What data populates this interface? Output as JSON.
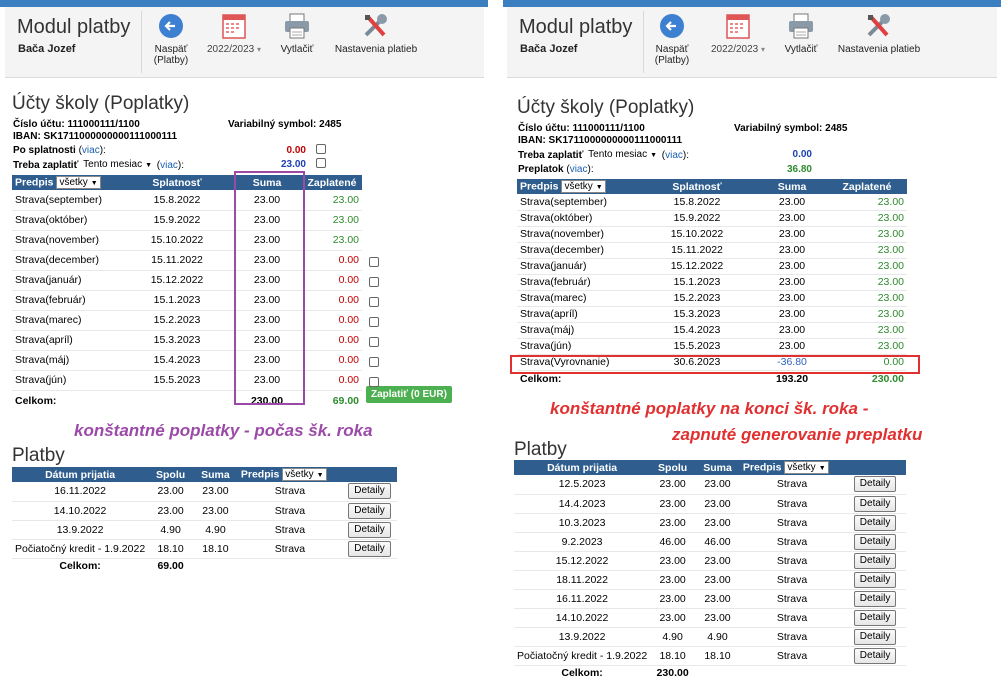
{
  "header": {
    "module_title": "Modul platby",
    "user_name": "Bača Jozef",
    "back_label_1": "Naspäť",
    "back_label_2": "(Platby)",
    "year_label": "2022/2023",
    "print_label": "Vytlačiť",
    "settings_label": "Nastavenia platieb",
    "caret": "▾"
  },
  "account": {
    "section_title": "Účty školy (Poplatky)",
    "number_label": "Číslo účtu: 111000111/1100",
    "iban_label": "IBAN: SK1711000000000111000111",
    "variable_symbol": "Variabilný symbol: 2485",
    "overdue_label": "Po splatnosti",
    "more_link": "viac",
    "to_pay_label": "Treba zaplatiť",
    "to_pay_select": "Tento mesiac",
    "overpay_label": "Preplatok",
    "colon": ":"
  },
  "fees_header": {
    "predpis": "Predpis",
    "filter": "všetky",
    "splatnost": "Splatnosť",
    "suma": "Suma",
    "zaplatene": "Zaplatené",
    "total_label": "Celkom:"
  },
  "left": {
    "overdue_value": "0.00",
    "to_pay_value": "23.00",
    "fees": [
      {
        "name": "Strava(september)",
        "due": "15.8.2022",
        "amount": "23.00",
        "paid": "23.00"
      },
      {
        "name": "Strava(október)",
        "due": "15.9.2022",
        "amount": "23.00",
        "paid": "23.00"
      },
      {
        "name": "Strava(november)",
        "due": "15.10.2022",
        "amount": "23.00",
        "paid": "23.00"
      },
      {
        "name": "Strava(december)",
        "due": "15.11.2022",
        "amount": "23.00",
        "paid": "0.00"
      },
      {
        "name": "Strava(január)",
        "due": "15.12.2022",
        "amount": "23.00",
        "paid": "0.00"
      },
      {
        "name": "Strava(február)",
        "due": "15.1.2023",
        "amount": "23.00",
        "paid": "0.00"
      },
      {
        "name": "Strava(marec)",
        "due": "15.2.2023",
        "amount": "23.00",
        "paid": "0.00"
      },
      {
        "name": "Strava(apríl)",
        "due": "15.3.2023",
        "amount": "23.00",
        "paid": "0.00"
      },
      {
        "name": "Strava(máj)",
        "due": "15.4.2023",
        "amount": "23.00",
        "paid": "0.00"
      },
      {
        "name": "Strava(jún)",
        "due": "15.5.2023",
        "amount": "23.00",
        "paid": "0.00"
      }
    ],
    "total_amount": "230.00",
    "total_paid": "69.00",
    "pay_button": "Zaplatiť (0 EUR)",
    "annotation": "konštantné poplatky  -  počas šk. roka",
    "payments": [
      {
        "date": "16.11.2022",
        "spolu": "23.00",
        "suma": "23.00",
        "predpis": "Strava"
      },
      {
        "date": "14.10.2022",
        "spolu": "23.00",
        "suma": "23.00",
        "predpis": "Strava"
      },
      {
        "date": "13.9.2022",
        "spolu": "4.90",
        "suma": "4.90",
        "predpis": "Strava"
      },
      {
        "date": "Počiatočný kredit - 1.9.2022",
        "spolu": "18.10",
        "suma": "18.10",
        "predpis": "Strava"
      }
    ],
    "payments_total": "69.00"
  },
  "right": {
    "to_pay_value": "0.00",
    "overpay_value": "36.80",
    "fees": [
      {
        "name": "Strava(september)",
        "due": "15.8.2022",
        "amount": "23.00",
        "paid": "23.00"
      },
      {
        "name": "Strava(október)",
        "due": "15.9.2022",
        "amount": "23.00",
        "paid": "23.00"
      },
      {
        "name": "Strava(november)",
        "due": "15.10.2022",
        "amount": "23.00",
        "paid": "23.00"
      },
      {
        "name": "Strava(december)",
        "due": "15.11.2022",
        "amount": "23.00",
        "paid": "23.00"
      },
      {
        "name": "Strava(január)",
        "due": "15.12.2022",
        "amount": "23.00",
        "paid": "23.00"
      },
      {
        "name": "Strava(február)",
        "due": "15.1.2023",
        "amount": "23.00",
        "paid": "23.00"
      },
      {
        "name": "Strava(marec)",
        "due": "15.2.2023",
        "amount": "23.00",
        "paid": "23.00"
      },
      {
        "name": "Strava(apríl)",
        "due": "15.3.2023",
        "amount": "23.00",
        "paid": "23.00"
      },
      {
        "name": "Strava(máj)",
        "due": "15.4.2023",
        "amount": "23.00",
        "paid": "23.00"
      },
      {
        "name": "Strava(jún)",
        "due": "15.5.2023",
        "amount": "23.00",
        "paid": "23.00"
      }
    ],
    "settle_row": {
      "name": "Strava(Vyrovnanie)",
      "due": "30.6.2023",
      "amount": "-36.80",
      "paid": "0.00"
    },
    "total_amount": "193.20",
    "total_paid": "230.00",
    "annotation_1": "konštantné poplatky na konci šk. roka  -",
    "annotation_2": "zapnuté generovanie preplatku",
    "payments": [
      {
        "date": "12.5.2023",
        "spolu": "23.00",
        "suma": "23.00",
        "predpis": "Strava"
      },
      {
        "date": "14.4.2023",
        "spolu": "23.00",
        "suma": "23.00",
        "predpis": "Strava"
      },
      {
        "date": "10.3.2023",
        "spolu": "23.00",
        "suma": "23.00",
        "predpis": "Strava"
      },
      {
        "date": "9.2.2023",
        "spolu": "46.00",
        "suma": "46.00",
        "predpis": "Strava"
      },
      {
        "date": "15.12.2022",
        "spolu": "23.00",
        "suma": "23.00",
        "predpis": "Strava"
      },
      {
        "date": "18.11.2022",
        "spolu": "23.00",
        "suma": "23.00",
        "predpis": "Strava"
      },
      {
        "date": "16.11.2022",
        "spolu": "23.00",
        "suma": "23.00",
        "predpis": "Strava"
      },
      {
        "date": "14.10.2022",
        "spolu": "23.00",
        "suma": "23.00",
        "predpis": "Strava"
      },
      {
        "date": "13.9.2022",
        "spolu": "4.90",
        "suma": "4.90",
        "predpis": "Strava"
      },
      {
        "date": "Počiatočný kredit - 1.9.2022",
        "spolu": "18.10",
        "suma": "18.10",
        "predpis": "Strava"
      }
    ],
    "payments_total": "230.00"
  },
  "payments_header": {
    "section_title": "Platby",
    "date": "Dátum prijatia",
    "spolu": "Spolu",
    "suma": "Suma",
    "predpis": "Predpis",
    "filter": "všetky",
    "detail_button": "Detaily",
    "total_label": "Celkom:"
  },
  "colors": {
    "header_bar": "#3c7fc0",
    "table_header": "#2f5e8e",
    "paid_green": "#2e8b2e",
    "unpaid_red": "#c00000",
    "annotation_purple": "#9b4aa8",
    "annotation_red": "#e03030",
    "pay_button": "#4caf50"
  },
  "icons": {
    "back": "back-arrow-icon",
    "calendar": "calendar-icon",
    "print": "printer-icon",
    "settings": "tools-icon"
  }
}
